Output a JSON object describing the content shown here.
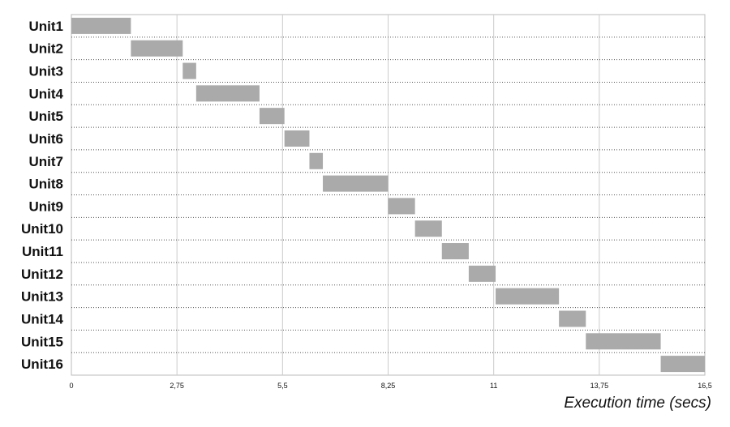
{
  "chart_data": {
    "type": "bar",
    "orientation": "horizontal",
    "xlabel": "Execution time (secs)",
    "ylabel": "",
    "xlim": [
      0,
      16.5
    ],
    "x_tick_labels": [
      "0",
      "2,75",
      "5,5",
      "8,25",
      "11",
      "13,75",
      "16,5"
    ],
    "x_ticks": [
      0,
      2.75,
      5.5,
      8.25,
      11,
      13.75,
      16.5
    ],
    "grid": true,
    "bar_color": "#aaaaaa",
    "series": [
      {
        "label": "Unit1",
        "start": 0.0,
        "end": 1.55
      },
      {
        "label": "Unit2",
        "start": 1.55,
        "end": 2.9
      },
      {
        "label": "Unit3",
        "start": 2.9,
        "end": 3.25
      },
      {
        "label": "Unit4",
        "start": 3.25,
        "end": 4.9
      },
      {
        "label": "Unit5",
        "start": 4.9,
        "end": 5.55
      },
      {
        "label": "Unit6",
        "start": 5.55,
        "end": 6.2
      },
      {
        "label": "Unit7",
        "start": 6.2,
        "end": 6.55
      },
      {
        "label": "Unit8",
        "start": 6.55,
        "end": 8.25
      },
      {
        "label": "Unit9",
        "start": 8.25,
        "end": 8.95
      },
      {
        "label": "Unit10",
        "start": 8.95,
        "end": 9.65
      },
      {
        "label": "Unit11",
        "start": 9.65,
        "end": 10.35
      },
      {
        "label": "Unit12",
        "start": 10.35,
        "end": 11.05
      },
      {
        "label": "Unit13",
        "start": 11.05,
        "end": 12.7
      },
      {
        "label": "Unit14",
        "start": 12.7,
        "end": 13.4
      },
      {
        "label": "Unit15",
        "start": 13.4,
        "end": 15.35
      },
      {
        "label": "Unit16",
        "start": 15.35,
        "end": 16.5
      }
    ]
  }
}
